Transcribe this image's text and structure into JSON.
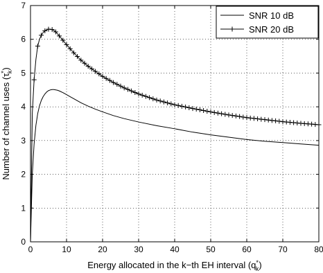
{
  "chart_data": {
    "type": "line",
    "title": "",
    "xlabel": "Energy allocated in the k−th EH interval (q",
    "xlabel_sub": "k",
    "xlabel_sup": "*",
    "xlabel_end": ")",
    "ylabel": "Number of channel uses (τ",
    "ylabel_sub": "k",
    "ylabel_sup": "*",
    "ylabel_end": ")",
    "xlim": [
      0,
      80
    ],
    "ylim": [
      0,
      7
    ],
    "xticks": [
      "0",
      "10",
      "20",
      "30",
      "40",
      "50",
      "60",
      "70",
      "80"
    ],
    "yticks": [
      "0",
      "1",
      "2",
      "3",
      "4",
      "5",
      "6",
      "7"
    ],
    "grid": true,
    "legend_position": "top-right",
    "series": [
      {
        "name": "SNR 10 dB",
        "marker": "none",
        "color": "#000000",
        "x": [
          0,
          0.5,
          1,
          1.5,
          2,
          2.5,
          3,
          3.5,
          4,
          4.5,
          5,
          5.5,
          6,
          6.5,
          7,
          7.5,
          8,
          9,
          10,
          11,
          12,
          14,
          16,
          18,
          20,
          23,
          26,
          30,
          35,
          40,
          45,
          50,
          55,
          60,
          65,
          70,
          75,
          80
        ],
        "y": [
          0,
          2.0,
          2.9,
          3.45,
          3.8,
          4.03,
          4.19,
          4.3,
          4.38,
          4.44,
          4.48,
          4.5,
          4.51,
          4.51,
          4.5,
          4.49,
          4.47,
          4.42,
          4.36,
          4.3,
          4.24,
          4.12,
          4.02,
          3.93,
          3.85,
          3.74,
          3.65,
          3.55,
          3.44,
          3.35,
          3.25,
          3.17,
          3.1,
          3.03,
          2.98,
          2.94,
          2.9,
          2.86
        ]
      },
      {
        "name": "SNR 20 dB",
        "marker": "plus",
        "color": "#000000",
        "x": [
          0,
          0.5,
          1,
          1.5,
          2,
          2.5,
          3,
          3.5,
          4,
          4.5,
          5,
          5.5,
          6,
          6.5,
          7,
          7.5,
          8,
          9,
          10,
          11,
          12,
          14,
          16,
          18,
          20,
          23,
          26,
          30,
          35,
          40,
          45,
          50,
          55,
          60,
          65,
          70,
          75,
          80
        ],
        "y": [
          0,
          3.8,
          4.8,
          5.4,
          5.8,
          6.0,
          6.12,
          6.2,
          6.25,
          6.28,
          6.3,
          6.3,
          6.29,
          6.26,
          6.22,
          6.16,
          6.1,
          5.97,
          5.84,
          5.72,
          5.6,
          5.38,
          5.2,
          5.05,
          4.9,
          4.72,
          4.56,
          4.38,
          4.2,
          4.06,
          3.95,
          3.85,
          3.76,
          3.68,
          3.62,
          3.56,
          3.51,
          3.47
        ]
      }
    ]
  }
}
